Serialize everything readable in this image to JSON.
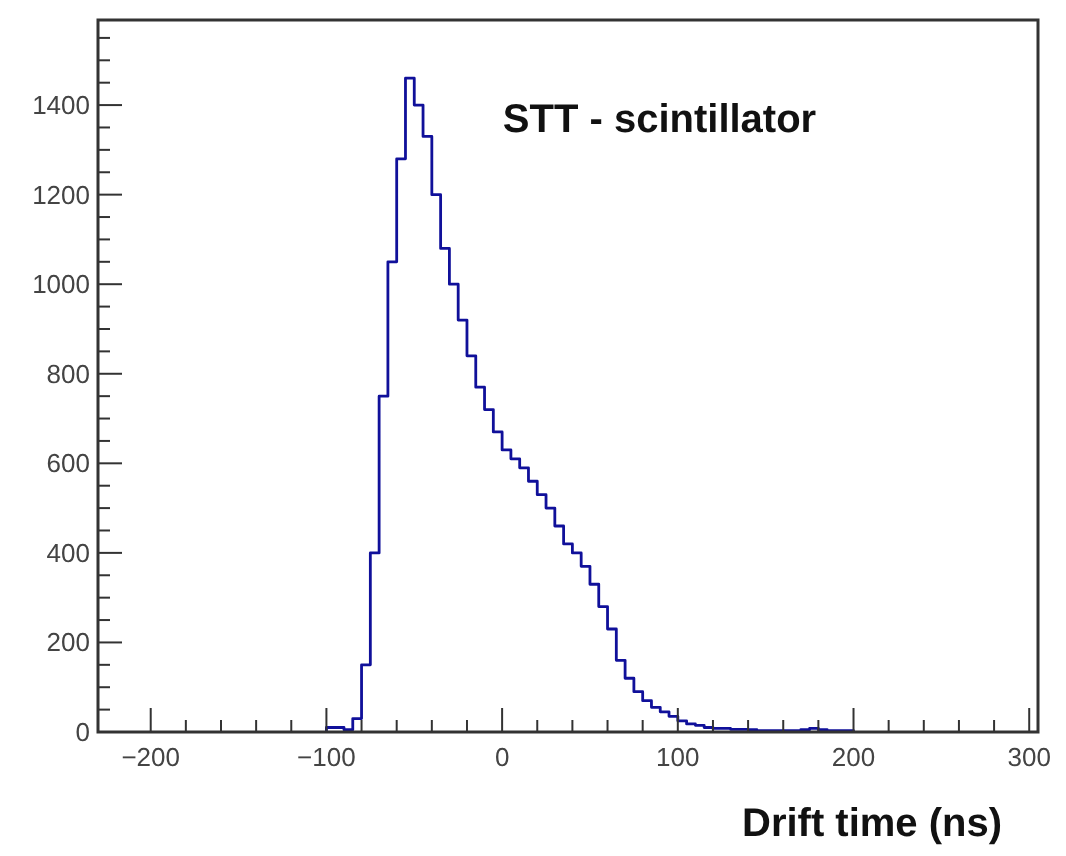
{
  "chart_data": {
    "type": "histogram",
    "title": "STT - scintillator",
    "xlabel": "Drift time (ns)",
    "color": "#10109a",
    "bins": [
      -100,
      -95,
      -90,
      -85,
      -80,
      -75,
      -70,
      -65,
      -60,
      -55,
      -50,
      -45,
      -40,
      -35,
      -30,
      -25,
      -20,
      -15,
      -10,
      -5,
      0,
      5,
      10,
      15,
      20,
      25,
      30,
      35,
      40,
      45,
      50,
      55,
      60,
      65,
      70,
      75,
      80,
      85,
      90,
      95,
      100,
      105,
      110,
      115,
      120,
      125,
      130,
      135,
      140,
      145,
      150,
      155,
      160,
      165,
      170,
      175,
      180,
      185,
      190,
      195,
      200
    ],
    "values": [
      10,
      10,
      5,
      30,
      150,
      400,
      750,
      1050,
      1280,
      1460,
      1400,
      1330,
      1200,
      1080,
      1000,
      920,
      840,
      770,
      720,
      670,
      630,
      610,
      590,
      560,
      530,
      500,
      460,
      420,
      400,
      370,
      330,
      280,
      230,
      160,
      120,
      90,
      70,
      55,
      45,
      35,
      25,
      18,
      15,
      10,
      8,
      8,
      6,
      6,
      5,
      3,
      3,
      3,
      3,
      3,
      5,
      8,
      5,
      3,
      3,
      3
    ],
    "xlim": [
      -230,
      305
    ],
    "ylim": [
      0,
      1590
    ],
    "xticks": [
      -200,
      {
        "value": -180,
        "label": null
      },
      {
        "value": -160,
        "label": null
      },
      {
        "value": -140,
        "label": null
      },
      {
        "value": -120,
        "label": null
      },
      -100,
      {
        "value": -80,
        "label": null
      },
      {
        "value": -60,
        "label": null
      },
      {
        "value": -40,
        "label": null
      },
      {
        "value": -20,
        "label": null
      },
      0,
      {
        "value": 20,
        "label": null
      },
      {
        "value": 40,
        "label": null
      },
      {
        "value": 60,
        "label": null
      },
      {
        "value": 80,
        "label": null
      },
      100,
      {
        "value": 120,
        "label": null
      },
      {
        "value": 140,
        "label": null
      },
      {
        "value": 160,
        "label": null
      },
      {
        "value": 180,
        "label": null
      },
      200,
      {
        "value": 220,
        "label": null
      },
      {
        "value": 240,
        "label": null
      },
      {
        "value": 260,
        "label": null
      },
      {
        "value": 280,
        "label": null
      },
      300
    ],
    "yticks": [
      0,
      {
        "value": 50,
        "label": null
      },
      {
        "value": 100,
        "label": null
      },
      {
        "value": 150,
        "label": null
      },
      200,
      {
        "value": 250,
        "label": null
      },
      {
        "value": 300,
        "label": null
      },
      {
        "value": 350,
        "label": null
      },
      400,
      {
        "value": 450,
        "label": null
      },
      {
        "value": 500,
        "label": null
      },
      {
        "value": 550,
        "label": null
      },
      600,
      {
        "value": 650,
        "label": null
      },
      {
        "value": 700,
        "label": null
      },
      {
        "value": 750,
        "label": null
      },
      800,
      {
        "value": 850,
        "label": null
      },
      {
        "value": 900,
        "label": null
      },
      {
        "value": 950,
        "label": null
      },
      1000,
      {
        "value": 1050,
        "label": null
      },
      {
        "value": 1100,
        "label": null
      },
      {
        "value": 1150,
        "label": null
      },
      1200,
      {
        "value": 1250,
        "label": null
      },
      {
        "value": 1300,
        "label": null
      },
      {
        "value": 1350,
        "label": null
      },
      1400,
      {
        "value": 1450,
        "label": null
      },
      {
        "value": 1500,
        "label": null
      },
      {
        "value": 1550,
        "label": null
      }
    ],
    "grid": false
  }
}
